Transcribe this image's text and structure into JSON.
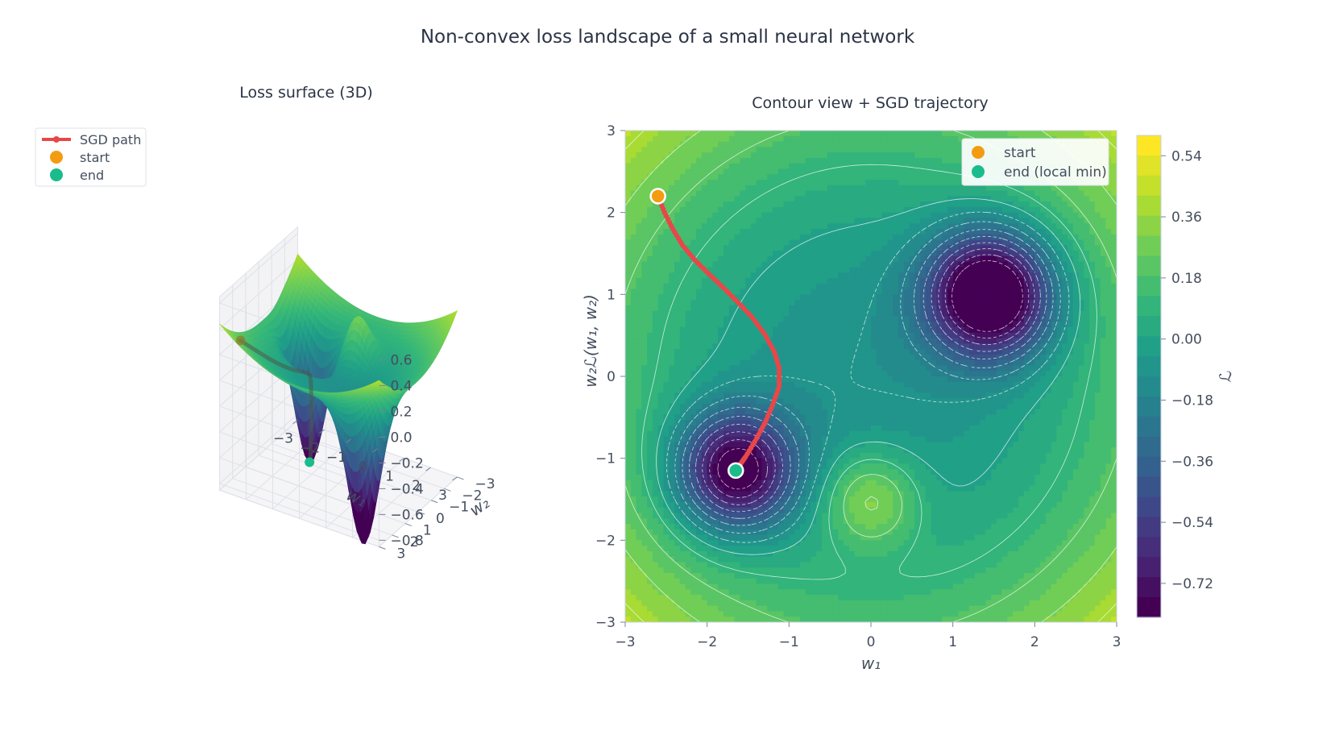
{
  "figure": {
    "title": "Non-convex loss landscape of a small neural network"
  },
  "colors": {
    "sgd_path": "#e8474a",
    "start": "#f39c12",
    "end": "#1abc8c",
    "contour_line": "#ffffff",
    "axis_text": "#444e5e"
  },
  "chart_data": [
    {
      "type": "surface",
      "title": "Loss surface (3D)",
      "xlabel": "w₁",
      "ylabel": "w₂",
      "zlabel": "",
      "xlim": [
        -3,
        3
      ],
      "ylim": [
        -3,
        3
      ],
      "zlim": [
        -0.8,
        0.6
      ],
      "xticks": [
        "−3",
        "−2",
        "−1",
        "0",
        "1",
        "2",
        "3"
      ],
      "yticks": [
        "−3",
        "−2",
        "−1",
        "0",
        "1",
        "2",
        "3"
      ],
      "zticks": [
        "0.6",
        "0.4",
        "0.2",
        "0.0",
        "−0.2",
        "−0.4",
        "−0.6",
        "−0.8"
      ],
      "colormap": "viridis",
      "legend": {
        "placement": "top-left",
        "entries": [
          "SGD path",
          "start",
          "end"
        ]
      },
      "surface_features": [
        {
          "kind": "minimum",
          "w1": 1.45,
          "w2": 1.0,
          "loss": -0.9
        },
        {
          "kind": "minimum",
          "w1": -1.65,
          "w2": -1.15,
          "loss": -0.68
        },
        {
          "kind": "bump",
          "w1": 0.0,
          "w2": -1.5,
          "loss": 0.1
        }
      ]
    },
    {
      "type": "contour",
      "title": "Contour view + SGD trajectory",
      "xlabel": "w₁",
      "ylabel": "w₂",
      "xlim": [
        -3,
        3
      ],
      "ylim": [
        -3,
        3
      ],
      "xticks": [
        "−3",
        "−2",
        "−1",
        "0",
        "1",
        "2",
        "3"
      ],
      "yticks": [
        "−3",
        "−2",
        "−1",
        "0",
        "1",
        "2",
        "3"
      ],
      "colorbar": {
        "label": "ℒ",
        "range": [
          -0.82,
          0.6
        ],
        "ticks": [
          0.54,
          0.36,
          0.18,
          0.0,
          -0.18,
          -0.36,
          -0.54,
          -0.72
        ],
        "tick_labels": [
          "0.54",
          "0.36",
          "0.18",
          "0.00",
          "−0.18",
          "−0.36",
          "−0.54",
          "−0.72"
        ]
      },
      "legend": {
        "placement": "top-right",
        "entries": [
          "start",
          "end (local min)"
        ]
      },
      "overlapping_axis_label": "w₂ℒ(w₁, w₂)",
      "sgd_path": {
        "name": "SGD path",
        "w1": [
          -2.6,
          -2.52,
          -2.42,
          -2.3,
          -2.15,
          -1.98,
          -1.8,
          -1.62,
          -1.45,
          -1.3,
          -1.18,
          -1.12,
          -1.12,
          -1.2,
          -1.3,
          -1.42,
          -1.53,
          -1.6,
          -1.65
        ],
        "w2": [
          2.2,
          2.0,
          1.8,
          1.6,
          1.42,
          1.25,
          1.08,
          0.9,
          0.72,
          0.52,
          0.3,
          0.1,
          -0.12,
          -0.35,
          -0.58,
          -0.8,
          -0.98,
          -1.08,
          -1.15
        ]
      },
      "start": {
        "w1": -2.6,
        "w2": 2.2
      },
      "end": {
        "w1": -1.65,
        "w2": -1.15
      }
    }
  ]
}
